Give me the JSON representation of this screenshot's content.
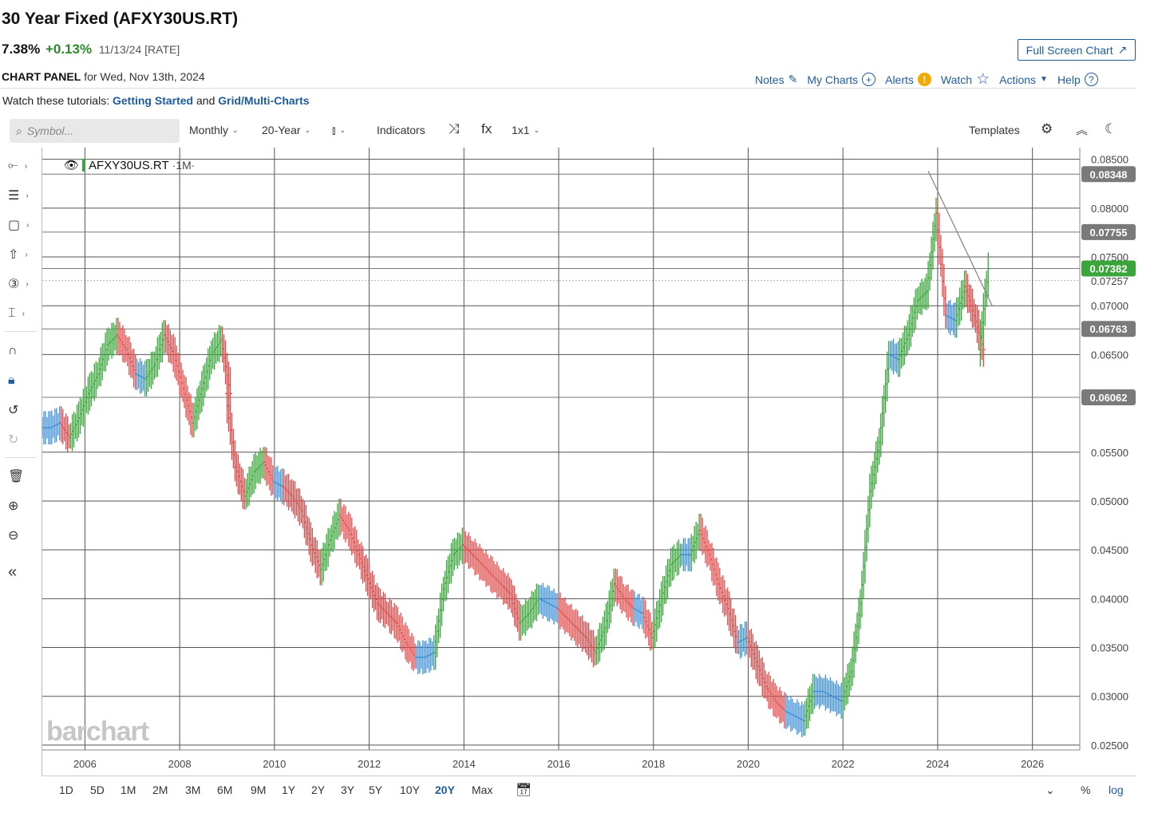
{
  "header": {
    "title": "30 Year Fixed (AFXY30US.RT)",
    "last": "7.38%",
    "change": "+0.13%",
    "meta": "11/13/24 [RATE]",
    "fullscreen_label": "Full Screen Chart",
    "panel_label": "CHART PANEL",
    "panel_date": "for Wed, Nov 13th, 2024"
  },
  "top_links": {
    "notes": "Notes",
    "my_charts": "My Charts",
    "alerts": "Alerts",
    "watch": "Watch",
    "actions": "Actions",
    "help": "Help"
  },
  "tutorials": {
    "prefix": "Watch these tutorials:",
    "link1": "Getting Started",
    "and": "and",
    "link2": "Grid/Multi-Charts"
  },
  "toolbar": {
    "symbol_placeholder": "Symbol...",
    "interval": "Monthly",
    "period": "20-Year",
    "indicators": "Indicators",
    "layout": "1x1",
    "templates": "Templates"
  },
  "legend": {
    "symbol": "AFXY30US.RT",
    "timeframe": "·1M·"
  },
  "watermark": "barchart",
  "ranges": [
    "1D",
    "5D",
    "1M",
    "2M",
    "3M",
    "6M",
    "9M",
    "1Y",
    "2Y",
    "3Y",
    "5Y",
    "10Y",
    "20Y",
    "Max"
  ],
  "active_range": "20Y",
  "bottom_right": {
    "percent": "%",
    "log": "log"
  },
  "colors": {
    "up": "#3aa53a",
    "down": "#e04848",
    "neutral": "#3d8fd6",
    "accent": "#1f5c9e"
  },
  "chart_data": {
    "type": "ohlc",
    "y_ticks": [
      "0.08500",
      "0.08000",
      "0.07500",
      "0.07257",
      "0.07000",
      "0.06500",
      "0.05500",
      "0.05000",
      "0.04500",
      "0.04000",
      "0.03500",
      "0.03000",
      "0.02500"
    ],
    "x_ticks": [
      "2006",
      "2008",
      "2010",
      "2012",
      "2014",
      "2016",
      "2018",
      "2020",
      "2022",
      "2024",
      "2026"
    ],
    "price_labels": [
      {
        "value": "0.08348",
        "style": "gray"
      },
      {
        "value": "0.07755",
        "style": "gray"
      },
      {
        "value": "0.07382",
        "style": "green"
      },
      {
        "value": "0.06763",
        "style": "gray"
      },
      {
        "value": "0.06062",
        "style": "gray"
      }
    ],
    "ylim": [
      0.0245,
      0.0862
    ],
    "xlim": [
      2005.1,
      2027.0
    ],
    "series": [
      [
        2005.1,
        0.0575
      ],
      [
        2005.3,
        0.058
      ],
      [
        2005.5,
        0.0565
      ],
      [
        2005.7,
        0.0585
      ],
      [
        2005.9,
        0.061
      ],
      [
        2006.1,
        0.063
      ],
      [
        2006.3,
        0.066
      ],
      [
        2006.5,
        0.067
      ],
      [
        2006.7,
        0.0655
      ],
      [
        2006.9,
        0.063
      ],
      [
        2007.1,
        0.0625
      ],
      [
        2007.3,
        0.064
      ],
      [
        2007.5,
        0.067
      ],
      [
        2007.7,
        0.065
      ],
      [
        2007.9,
        0.0615
      ],
      [
        2008.1,
        0.058
      ],
      [
        2008.3,
        0.0615
      ],
      [
        2008.5,
        0.065
      ],
      [
        2008.7,
        0.0665
      ],
      [
        2008.9,
        0.061
      ],
      [
        2009.0,
        0.0535
      ],
      [
        2009.2,
        0.0505
      ],
      [
        2009.4,
        0.053
      ],
      [
        2009.6,
        0.054
      ],
      [
        2009.8,
        0.052
      ],
      [
        2010.0,
        0.0515
      ],
      [
        2010.2,
        0.0505
      ],
      [
        2010.4,
        0.049
      ],
      [
        2010.6,
        0.0455
      ],
      [
        2010.8,
        0.043
      ],
      [
        2011.0,
        0.046
      ],
      [
        2011.2,
        0.0485
      ],
      [
        2011.4,
        0.047
      ],
      [
        2011.6,
        0.0445
      ],
      [
        2011.8,
        0.042
      ],
      [
        2012.0,
        0.0395
      ],
      [
        2012.2,
        0.0385
      ],
      [
        2012.4,
        0.0375
      ],
      [
        2012.6,
        0.0355
      ],
      [
        2012.8,
        0.034
      ],
      [
        2013.0,
        0.034
      ],
      [
        2013.2,
        0.0345
      ],
      [
        2013.4,
        0.041
      ],
      [
        2013.6,
        0.0445
      ],
      [
        2013.8,
        0.0455
      ],
      [
        2014.0,
        0.0445
      ],
      [
        2014.2,
        0.0435
      ],
      [
        2014.4,
        0.0425
      ],
      [
        2014.6,
        0.0415
      ],
      [
        2014.8,
        0.0405
      ],
      [
        2015.0,
        0.0375
      ],
      [
        2015.2,
        0.0385
      ],
      [
        2015.4,
        0.04
      ],
      [
        2015.6,
        0.0395
      ],
      [
        2015.8,
        0.039
      ],
      [
        2016.0,
        0.038
      ],
      [
        2016.2,
        0.037
      ],
      [
        2016.4,
        0.036
      ],
      [
        2016.6,
        0.0345
      ],
      [
        2016.8,
        0.037
      ],
      [
        2017.0,
        0.0415
      ],
      [
        2017.2,
        0.04
      ],
      [
        2017.4,
        0.039
      ],
      [
        2017.6,
        0.0385
      ],
      [
        2017.8,
        0.036
      ],
      [
        2018.0,
        0.04
      ],
      [
        2018.2,
        0.0435
      ],
      [
        2018.4,
        0.0445
      ],
      [
        2018.6,
        0.0445
      ],
      [
        2018.8,
        0.047
      ],
      [
        2019.0,
        0.0445
      ],
      [
        2019.2,
        0.0415
      ],
      [
        2019.4,
        0.039
      ],
      [
        2019.6,
        0.0355
      ],
      [
        2019.8,
        0.036
      ],
      [
        2020.0,
        0.0335
      ],
      [
        2020.2,
        0.031
      ],
      [
        2020.4,
        0.0295
      ],
      [
        2020.6,
        0.0285
      ],
      [
        2020.8,
        0.028
      ],
      [
        2021.0,
        0.0275
      ],
      [
        2021.2,
        0.0305
      ],
      [
        2021.4,
        0.0305
      ],
      [
        2021.6,
        0.03
      ],
      [
        2021.8,
        0.0295
      ],
      [
        2022.0,
        0.0325
      ],
      [
        2022.2,
        0.0395
      ],
      [
        2022.4,
        0.051
      ],
      [
        2022.6,
        0.056
      ],
      [
        2022.8,
        0.065
      ],
      [
        2023.0,
        0.0645
      ],
      [
        2023.2,
        0.067
      ],
      [
        2023.4,
        0.0705
      ],
      [
        2023.6,
        0.0715
      ],
      [
        2023.8,
        0.0795
      ],
      [
        2024.0,
        0.069
      ],
      [
        2024.2,
        0.0685
      ],
      [
        2024.4,
        0.072
      ],
      [
        2024.6,
        0.069
      ],
      [
        2024.8,
        0.0655
      ],
      [
        2024.9,
        0.0738
      ]
    ]
  }
}
